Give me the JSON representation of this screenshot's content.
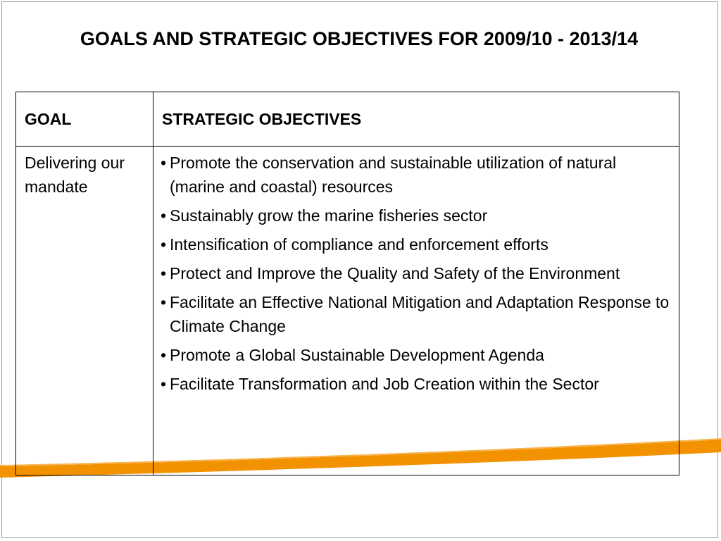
{
  "slide": {
    "title": "GOALS AND STRATEGIC OBJECTIVES FOR 2009/10 - 2013/14"
  },
  "table": {
    "headers": {
      "goal": "GOAL",
      "objectives": "STRATEGIC OBJECTIVES"
    },
    "rows": [
      {
        "goal": "Delivering our mandate",
        "objectives": [
          "Promote the conservation and sustainable utilization of natural (marine and coastal) resources",
          "Sustainably grow the marine fisheries sector",
          "Intensification of compliance and enforcement efforts",
          "Protect and Improve the Quality and Safety of the Environment",
          "Facilitate an Effective National Mitigation and Adaptation Response to Climate Change",
          "Promote a Global Sustainable Development Agenda",
          "Facilitate Transformation and Job Creation within the Sector"
        ]
      }
    ],
    "bullet": "•"
  },
  "colors": {
    "accent_orange": "#f39200",
    "table_border": "#000000",
    "frame_border": "#9a9a9a"
  }
}
